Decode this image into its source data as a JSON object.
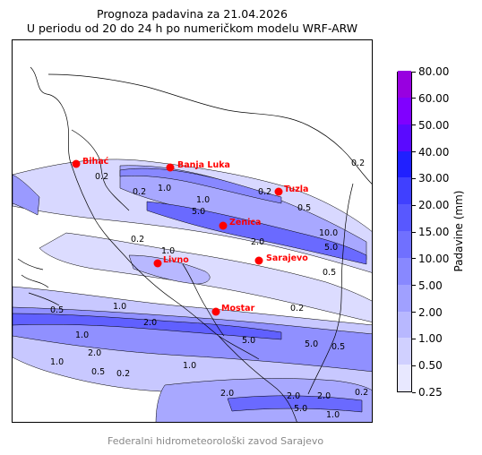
{
  "title": {
    "line1": "Prognoza padavina za 21.04.2026",
    "line2": "U periodu od 20 do 24 h po numeričkom modelu WRF-ARW"
  },
  "colorbar": {
    "label": "Padavine (mm)",
    "levels": [
      "0.25",
      "0.50",
      "1.00",
      "2.00",
      "5.00",
      "10.00",
      "15.00",
      "20.00",
      "30.00",
      "40.00",
      "50.00",
      "60.00",
      "80.00"
    ],
    "colors": [
      "#e8e8ff",
      "#d0d0ff",
      "#b8b8ff",
      "#a0a0ff",
      "#8888ff",
      "#7070ff",
      "#5858ff",
      "#4040ff",
      "#2020ff",
      "#5a0aff",
      "#8000ff",
      "#9800e0",
      "#b000b0"
    ]
  },
  "cities": [
    {
      "name": "Bihać"
    },
    {
      "name": "Banja Luka"
    },
    {
      "name": "Tuzla"
    },
    {
      "name": "Zenica"
    },
    {
      "name": "Livno"
    },
    {
      "name": "Sarajevo"
    },
    {
      "name": "Mostar"
    }
  ],
  "city_color": "#ff0000",
  "contour_labels": [
    "0.2",
    "0.5",
    "1.0",
    "2.0",
    "5.0",
    "10.0"
  ],
  "footer": "Federalni hidrometeorološki zavod Sarajevo"
}
